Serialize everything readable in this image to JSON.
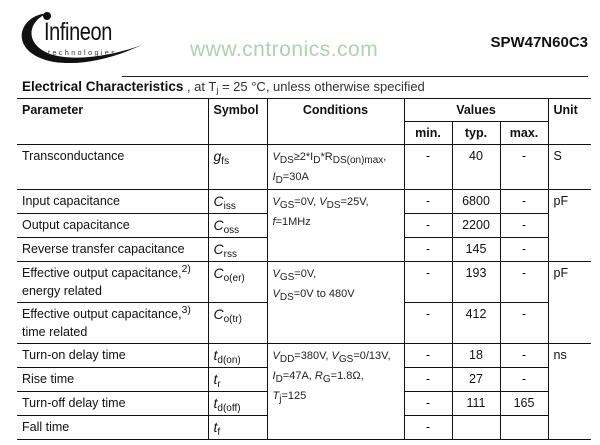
{
  "header": {
    "logo_text": "Infineon",
    "logo_sub": "technologies",
    "part_number": "SPW47N60C3"
  },
  "caption": {
    "title": "Electrical Characteristics",
    "rest": " , at T",
    "sub": "j",
    "rest2": " = 25 °C, unless otherwise specified"
  },
  "columns": {
    "parameter": "Parameter",
    "symbol": "Symbol",
    "conditions": "Conditions",
    "values": "Values",
    "min": "min.",
    "typ": "typ.",
    "max": "max.",
    "unit": "Unit"
  },
  "rows": [
    {
      "param": "Transconductance",
      "sym": "g",
      "sub": "fs",
      "min": "-",
      "typ": "40",
      "max": "-",
      "unit": "S",
      "cond": "V<sub>DS</sub>≥2*I<sub>D</sub>*R<sub>DS(on)max</sub>,<br>I<sub>D</sub>=30A"
    },
    {
      "param": "Input capacitance",
      "sym": "C",
      "sub": "iss",
      "min": "-",
      "typ": "6800",
      "max": "-",
      "unit": "pF",
      "cond": "V<sub>GS</sub>=0V, V<sub>DS</sub>=25V,<br>f=1MHz"
    },
    {
      "param": "Output capacitance",
      "sym": "C",
      "sub": "oss",
      "min": "-",
      "typ": "2200",
      "max": "-"
    },
    {
      "param": "Reverse transfer capacitance",
      "sym": "C",
      "sub": "rss",
      "min": "-",
      "typ": "145",
      "max": "-"
    },
    {
      "param": "Effective output capacitance,",
      "note": "2)",
      "param2": "energy related",
      "sym": "C",
      "sub": "o(er)",
      "min": "-",
      "typ": "193",
      "max": "-",
      "unit": "pF",
      "cond": "V<sub>GS</sub>=0V,<br>V<sub>DS</sub>=0V to 480V"
    },
    {
      "param": "Effective output capacitance,",
      "note": "3)",
      "param2": "time related",
      "sym": "C",
      "sub": "o(tr)",
      "min": "-",
      "typ": "412",
      "max": "-"
    },
    {
      "param": "Turn-on delay time",
      "sym": "t",
      "sub": "d(on)",
      "min": "-",
      "typ": "18",
      "max": "-",
      "unit": "ns",
      "cond": "V<sub>DD</sub>=380V, V<sub>GS</sub>=0/13V,<br>I<sub>D</sub>=47A, R<sub>G</sub>=1.8Ω,<br>T<sub>j</sub>=125"
    },
    {
      "param": "Rise time",
      "sym": "t",
      "sub": "r",
      "min": "-",
      "typ": "27",
      "max": "-"
    },
    {
      "param": "Turn-off delay time",
      "sym": "t",
      "sub": "d(off)",
      "min": "-",
      "typ": "111",
      "max": "165"
    },
    {
      "param": "Fall time",
      "sym": "t",
      "sub": "f",
      "min": "-",
      "typ": "",
      "max": ""
    }
  ],
  "watermark": "www.cntronics.com"
}
